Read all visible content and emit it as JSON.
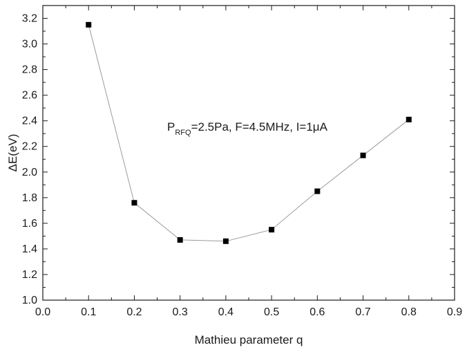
{
  "chart_data": {
    "type": "line",
    "title": "",
    "xlabel": "Mathieu parameter q",
    "ylabel": "ΔE(eV)",
    "xlim": [
      0.0,
      0.9
    ],
    "ylim": [
      1.0,
      3.3
    ],
    "x_ticks": [
      "0.0",
      "0.1",
      "0.2",
      "0.3",
      "0.4",
      "0.5",
      "0.6",
      "0.7",
      "0.8",
      "0.9"
    ],
    "y_ticks": [
      "1.0",
      "1.2",
      "1.4",
      "1.6",
      "1.8",
      "2.0",
      "2.2",
      "2.4",
      "2.6",
      "2.8",
      "3.0",
      "3.2"
    ],
    "grid": false,
    "series": [
      {
        "x": [
          0.1,
          0.2,
          0.3,
          0.4,
          0.5,
          0.6,
          0.7,
          0.8
        ],
        "y": [
          3.15,
          1.76,
          1.47,
          1.46,
          1.55,
          1.85,
          2.13,
          2.41
        ],
        "marker": "square",
        "color": "#000000",
        "line_color": "#9a9a9a"
      }
    ],
    "annotation": {
      "prefix": "P",
      "subscript": "RFQ",
      "rest": "=2.5Pa, F=4.5MHz, I=1μA"
    }
  }
}
